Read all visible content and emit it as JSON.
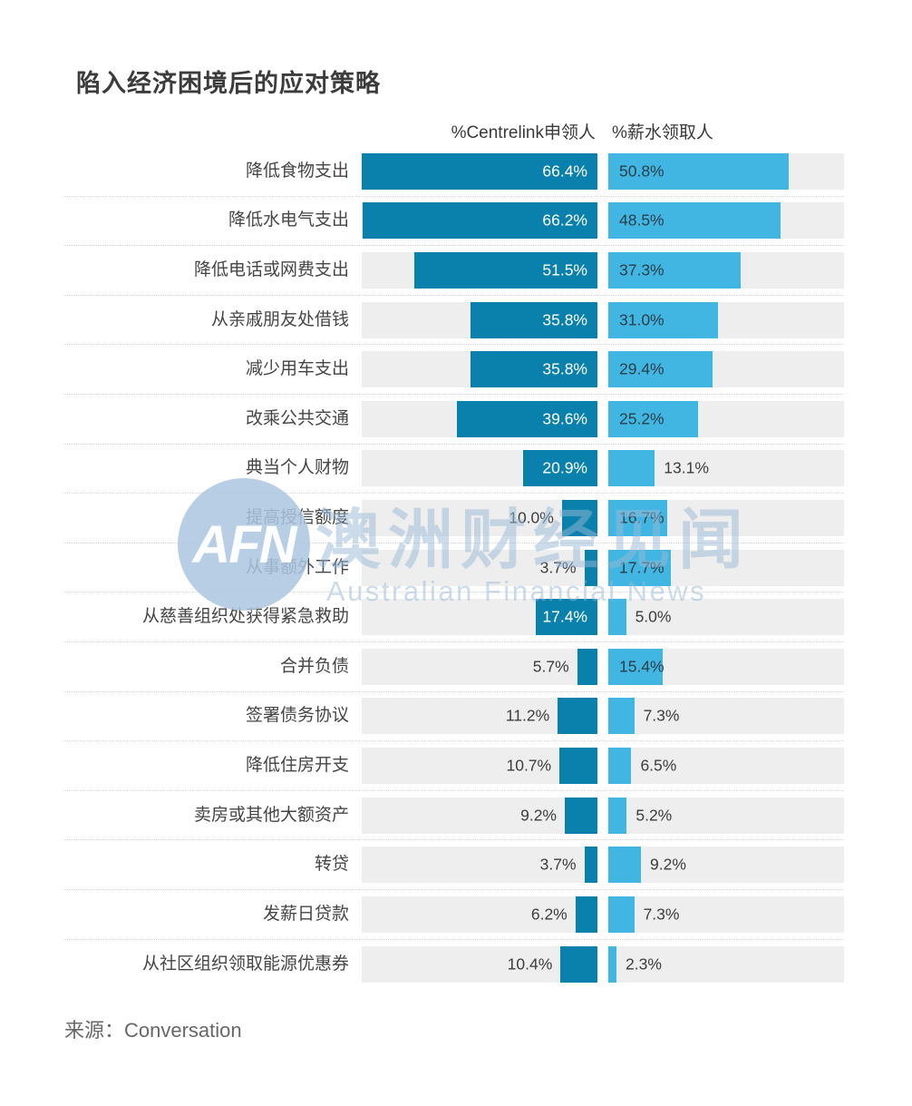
{
  "title": "陷入经济困境后的应对策略",
  "column_headers": {
    "left": "%Centrelink申领人",
    "right": "%薪水领取人"
  },
  "source": "来源：Conversation",
  "watermark": {
    "logo": "AFN",
    "cn": "澳洲财经见闻",
    "en": "Australian Financial News"
  },
  "colors": {
    "centrelink_bar": "#0a81ac",
    "salary_bar": "#41b6e2",
    "track": "#eeeeef",
    "value_inside_left": "#ffffff",
    "value_inside_right": "#2c3e4a",
    "value_outside": "#3d3d3d"
  },
  "chart_data": {
    "type": "bar",
    "orientation": "horizontal",
    "title": "陷入经济困境后的应对策略",
    "value_unit": "%",
    "axis_max": 66.4,
    "label_inside_threshold": 15,
    "grid": false,
    "legend_position": "top",
    "categories": [
      "降低食物支出",
      "降低水电气支出",
      "降低电话或网费支出",
      "从亲戚朋友处借钱",
      "减少用车支出",
      "改乘公共交通",
      "典当个人财物",
      "提高授信额度",
      "从事额外工作",
      "从慈善组织处获得紧急救助",
      "合并负债",
      "签署债务协议",
      "降低住房开支",
      "卖房或其他大额资产",
      "转贷",
      "发薪日贷款",
      "从社区组织领取能源优惠券"
    ],
    "series": [
      {
        "name": "%Centrelink申领人",
        "color": "#0a81ac",
        "values": [
          66.4,
          66.2,
          51.5,
          35.8,
          35.8,
          39.6,
          20.9,
          10.0,
          3.7,
          17.4,
          5.7,
          11.2,
          10.7,
          9.2,
          3.7,
          6.2,
          10.4
        ]
      },
      {
        "name": "%薪水领取人",
        "color": "#41b6e2",
        "values": [
          50.8,
          48.5,
          37.3,
          31.0,
          29.4,
          25.2,
          13.1,
          16.7,
          17.7,
          5.0,
          15.4,
          7.3,
          6.5,
          5.2,
          9.2,
          7.3,
          2.3
        ]
      }
    ]
  }
}
